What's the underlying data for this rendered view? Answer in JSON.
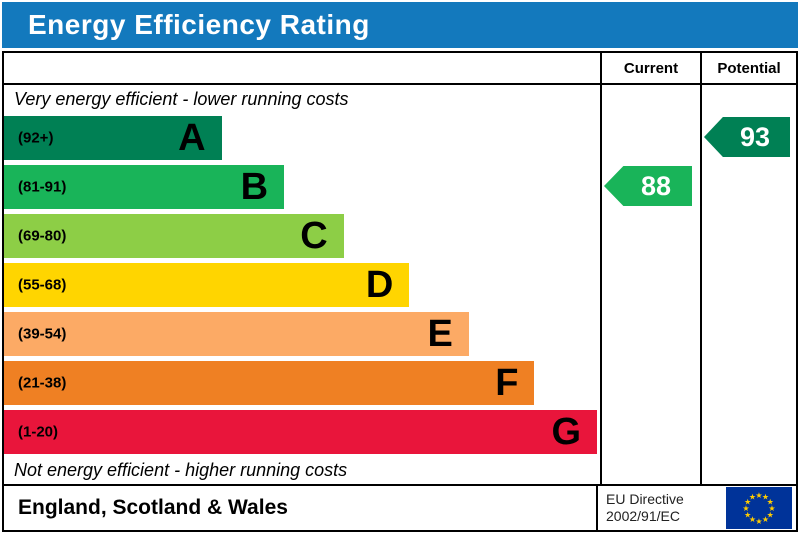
{
  "title": "Energy Efficiency Rating",
  "header": {
    "current": "Current",
    "potential": "Potential"
  },
  "notes": {
    "top": "Very energy efficient - lower running costs",
    "bottom": "Not energy efficient - higher running costs"
  },
  "bands": [
    {
      "letter": "A",
      "range": "(92+)",
      "color": "#008054",
      "width_pct": 36.5
    },
    {
      "letter": "B",
      "range": "(81-91)",
      "color": "#19b459",
      "width_pct": 47
    },
    {
      "letter": "C",
      "range": "(69-80)",
      "color": "#8dce46",
      "width_pct": 57
    },
    {
      "letter": "D",
      "range": "(55-68)",
      "color": "#ffd500",
      "width_pct": 68
    },
    {
      "letter": "E",
      "range": "(39-54)",
      "color": "#fcaa65",
      "width_pct": 78
    },
    {
      "letter": "F",
      "range": "(21-38)",
      "color": "#ef8023",
      "width_pct": 89
    },
    {
      "letter": "G",
      "range": "(1-20)",
      "color": "#e9153b",
      "width_pct": 99.5
    }
  ],
  "current": {
    "value": "88",
    "band_index": 1,
    "color": "#19b459"
  },
  "potential": {
    "value": "93",
    "band_index": 0,
    "color": "#008054"
  },
  "footer": {
    "region": "England, Scotland & Wales",
    "directive_line1": "EU Directive",
    "directive_line2": "2002/91/EC"
  },
  "flag_colors": {
    "field": "#003399",
    "stars": "#ffcc00"
  },
  "chart_data": {
    "type": "bar",
    "title": "Energy Efficiency Rating",
    "categories": [
      "A",
      "B",
      "C",
      "D",
      "E",
      "F",
      "G"
    ],
    "ranges": [
      "(92+)",
      "(81-91)",
      "(69-80)",
      "(55-68)",
      "(39-54)",
      "(21-38)",
      "(1-20)"
    ],
    "colors": [
      "#008054",
      "#19b459",
      "#8dce46",
      "#ffd500",
      "#fcaa65",
      "#ef8023",
      "#e9153b"
    ],
    "bar_lengths_pct": [
      36.5,
      47,
      57,
      68,
      78,
      89,
      99.5
    ],
    "current": 88,
    "current_band": "B",
    "potential": 93,
    "potential_band": "A",
    "top_note": "Very energy efficient - lower running costs",
    "bottom_note": "Not energy efficient - higher running costs",
    "region": "England, Scotland & Wales",
    "directive": "EU Directive 2002/91/EC"
  }
}
